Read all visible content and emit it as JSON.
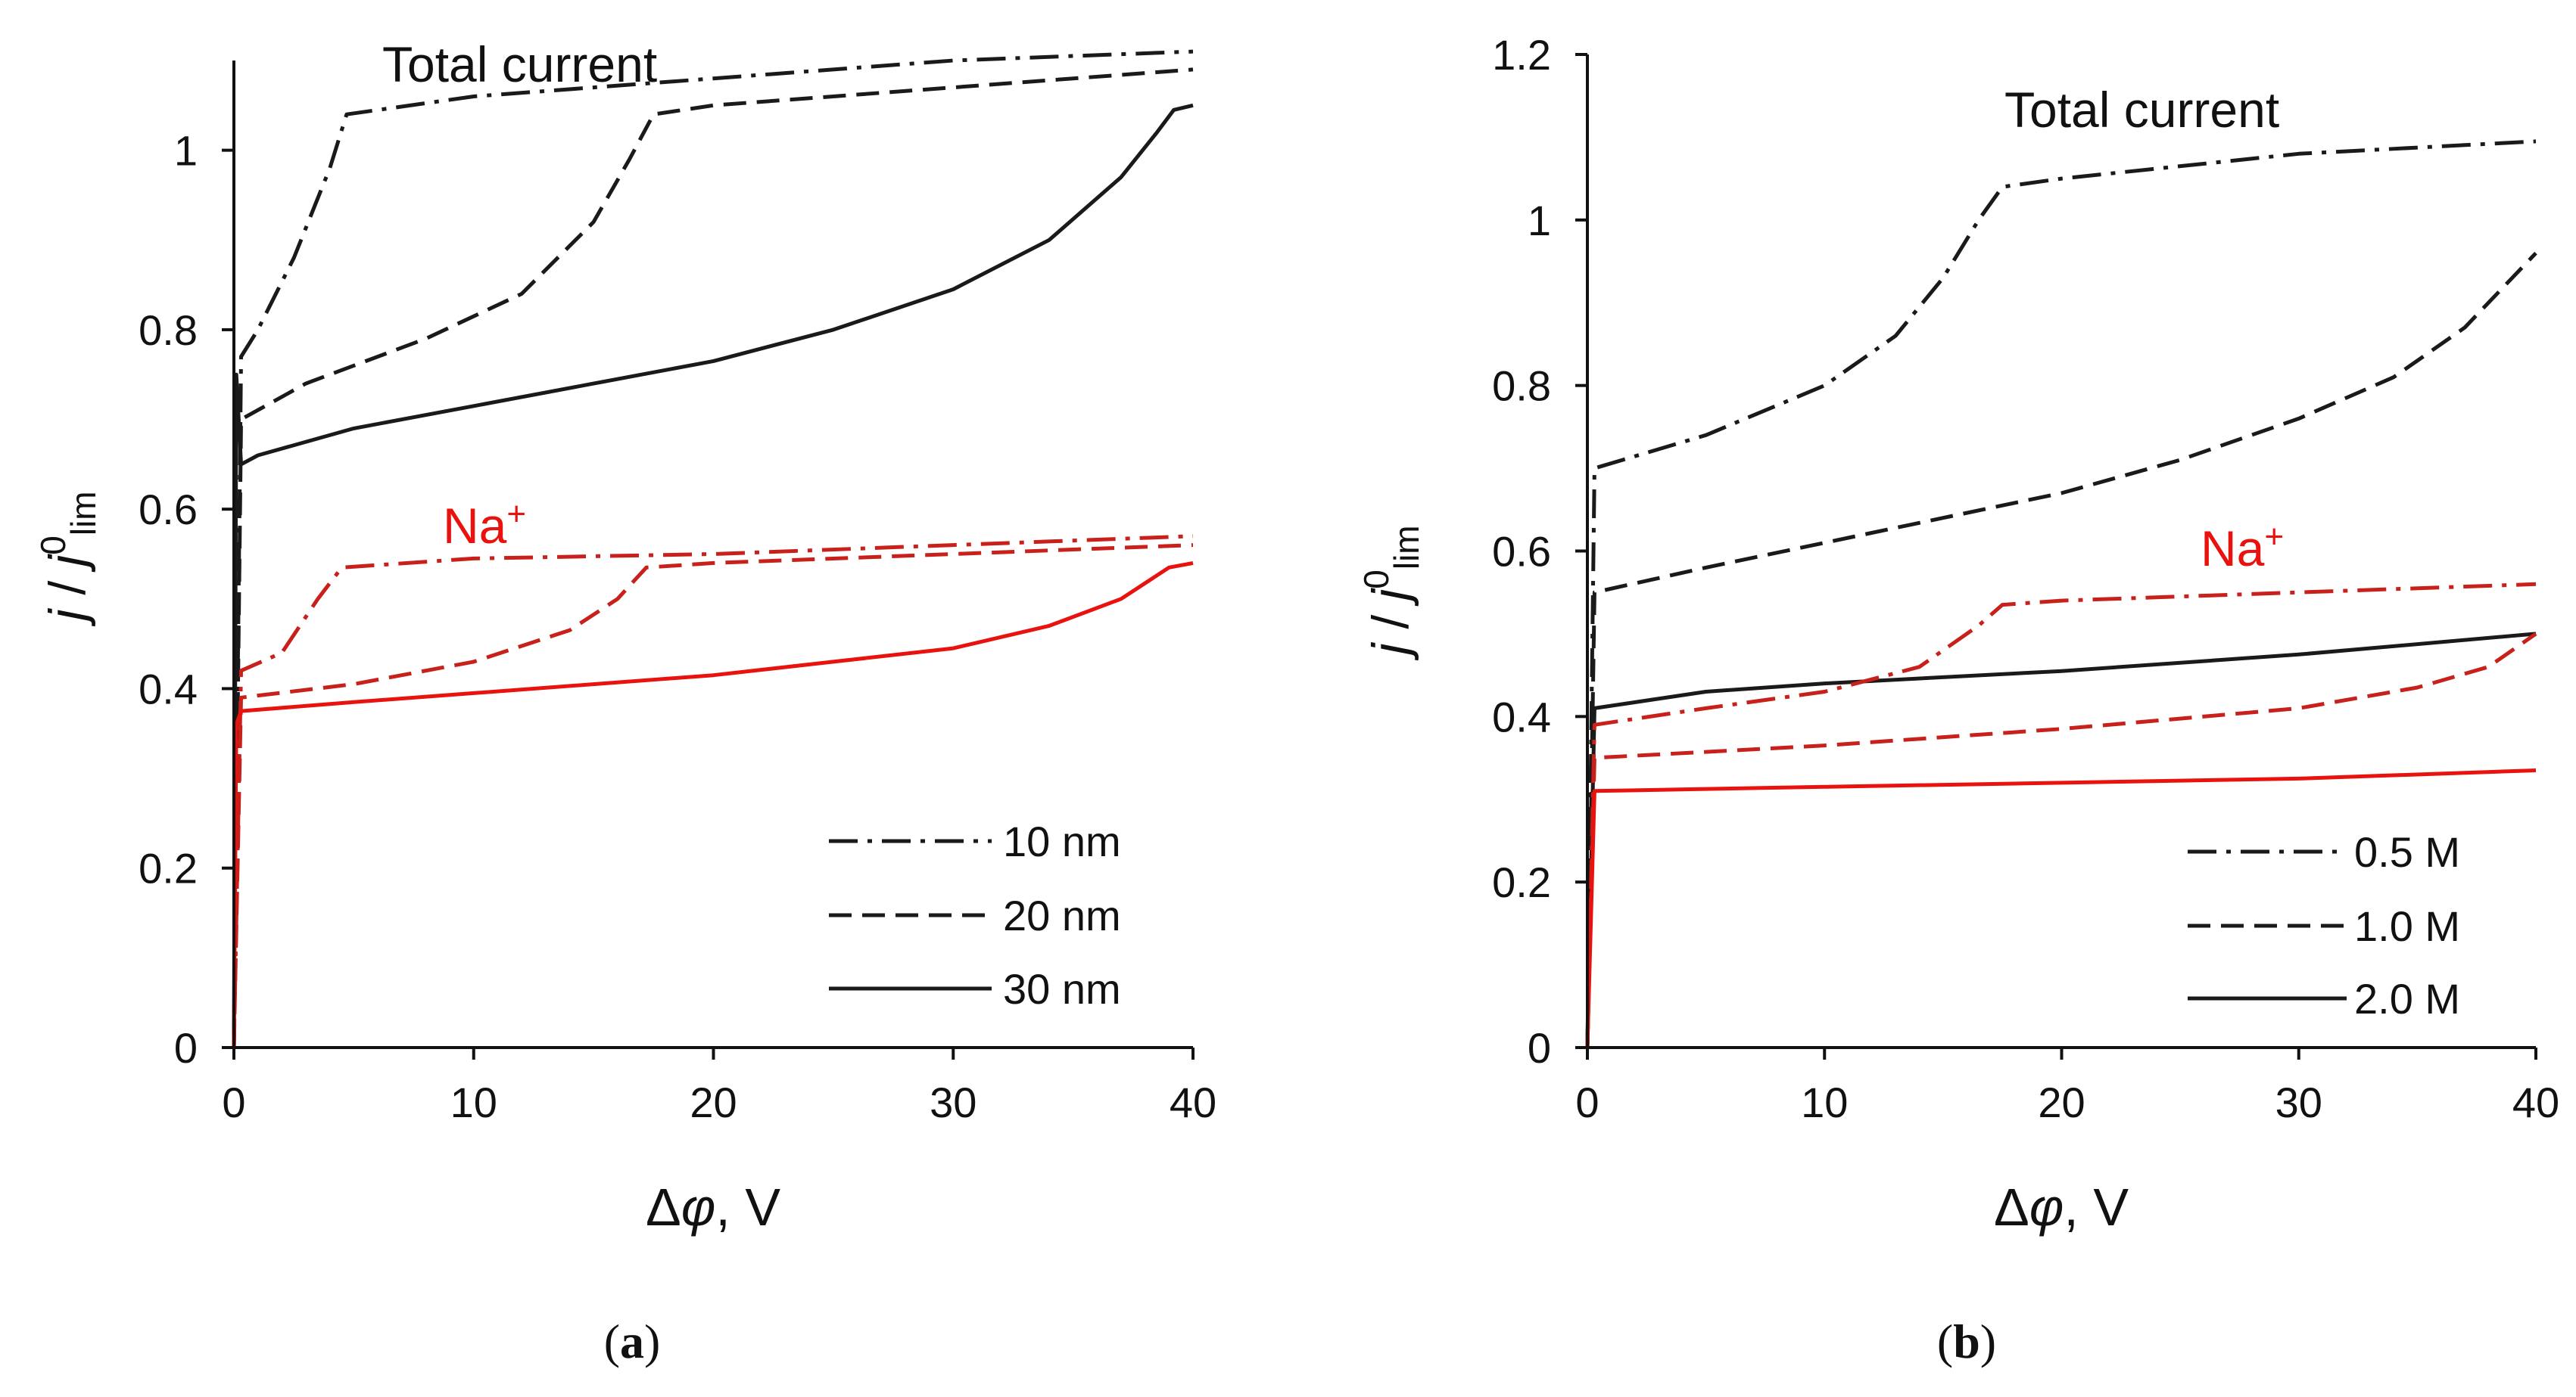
{
  "colors": {
    "total": "#1a1a1a",
    "na": "#e8120e",
    "na_dark": "#c8201a",
    "axis": "#111111"
  },
  "chart_data": [
    {
      "type": "line",
      "panel": "a",
      "panel_label": "a",
      "xlabel_prefix": "Δ",
      "xlabel_symbol": "φ",
      "xlabel_suffix": ", V",
      "ylabel_j1": "j",
      "ylabel_slash": " / ",
      "ylabel_j2": "j",
      "ylabel_sup": "0",
      "ylabel_sub": "lim",
      "xlim": [
        0,
        40
      ],
      "ylim": [
        0,
        1.1
      ],
      "xticks": [
        "0",
        "10",
        "20",
        "30",
        "40"
      ],
      "yticks": [
        "0",
        "0.2",
        "0.4",
        "0.6",
        "0.8",
        "1"
      ],
      "annotations": {
        "total": "Total current",
        "na_base": "Na",
        "na_sup": "+"
      },
      "legend": [
        "10 nm",
        "20 nm",
        "30 nm"
      ],
      "series": [
        {
          "name": "10 nm",
          "group": "Total current",
          "dash": "dashdot",
          "x": [
            0,
            0.3,
            1,
            2.5,
            4,
            4.7,
            10,
            20,
            30,
            40
          ],
          "y": [
            0,
            0.77,
            0.8,
            0.88,
            0.98,
            1.04,
            1.06,
            1.08,
            1.1,
            1.11
          ]
        },
        {
          "name": "20 nm",
          "group": "Total current",
          "dash": "dashed",
          "x": [
            0,
            0.3,
            3,
            8,
            12,
            15,
            16.5,
            17.5,
            20,
            30,
            40
          ],
          "y": [
            0,
            0.7,
            0.74,
            0.79,
            0.84,
            0.92,
            0.99,
            1.04,
            1.05,
            1.07,
            1.09
          ]
        },
        {
          "name": "30 nm",
          "group": "Total current",
          "dash": "solid",
          "x": [
            0,
            0.1,
            0.3,
            1,
            5,
            10,
            15,
            20,
            25,
            30,
            34,
            37,
            38.5,
            39.2,
            40
          ],
          "y": [
            0,
            0.75,
            0.65,
            0.66,
            0.69,
            0.715,
            0.74,
            0.765,
            0.8,
            0.845,
            0.9,
            0.97,
            1.02,
            1.045,
            1.05
          ]
        },
        {
          "name": "10 nm",
          "group": "Na+",
          "dash": "dashdot",
          "x": [
            0,
            0.3,
            2,
            3.5,
            4.5,
            10,
            20,
            30,
            40
          ],
          "y": [
            0,
            0.42,
            0.44,
            0.5,
            0.535,
            0.545,
            0.55,
            0.56,
            0.57
          ]
        },
        {
          "name": "20 nm",
          "group": "Na+",
          "dash": "dashed",
          "x": [
            0,
            0.3,
            5,
            10,
            14,
            16,
            17.2,
            20,
            30,
            40
          ],
          "y": [
            0,
            0.39,
            0.405,
            0.43,
            0.465,
            0.5,
            0.535,
            0.54,
            0.55,
            0.56
          ]
        },
        {
          "name": "30 nm",
          "group": "Na+",
          "dash": "solid",
          "x": [
            0,
            0.1,
            0.3,
            5,
            10,
            20,
            25,
            30,
            34,
            37,
            39,
            40
          ],
          "y": [
            0,
            0.36,
            0.375,
            0.385,
            0.395,
            0.415,
            0.43,
            0.445,
            0.47,
            0.5,
            0.535,
            0.54
          ]
        }
      ]
    },
    {
      "type": "line",
      "panel": "b",
      "panel_label": "b",
      "xlabel_prefix": "Δ",
      "xlabel_symbol": "φ",
      "xlabel_suffix": ", V",
      "ylabel_j1": "j",
      "ylabel_slash": " / ",
      "ylabel_j2": "j",
      "ylabel_sup": "0",
      "ylabel_sub": "lim",
      "xlim": [
        0,
        40
      ],
      "ylim": [
        0,
        1.2
      ],
      "xticks": [
        "0",
        "10",
        "20",
        "30",
        "40"
      ],
      "yticks": [
        "0",
        "0.2",
        "0.4",
        "0.6",
        "0.8",
        "1",
        "1.2"
      ],
      "annotations": {
        "total": "Total current",
        "na_base": "Na",
        "na_sup": "+"
      },
      "legend": [
        "0.5 M",
        "1.0 M",
        "2.0 M"
      ],
      "series": [
        {
          "name": "0.5 M",
          "group": "Total current",
          "dash": "dashdot",
          "x": [
            0,
            0.3,
            5,
            10,
            13,
            15,
            16.5,
            17.5,
            20,
            30,
            40
          ],
          "y": [
            0,
            0.7,
            0.74,
            0.8,
            0.86,
            0.93,
            1.0,
            1.04,
            1.05,
            1.08,
            1.095
          ]
        },
        {
          "name": "1.0 M",
          "group": "Total current",
          "dash": "dashed",
          "x": [
            0,
            0.3,
            5,
            10,
            15,
            20,
            25,
            30,
            34,
            37,
            40
          ],
          "y": [
            0,
            0.55,
            0.58,
            0.61,
            0.64,
            0.67,
            0.71,
            0.76,
            0.81,
            0.87,
            0.96
          ]
        },
        {
          "name": "2.0 M",
          "group": "Total current",
          "dash": "solid",
          "x": [
            0,
            0.3,
            5,
            10,
            20,
            30,
            40
          ],
          "y": [
            0,
            0.41,
            0.43,
            0.44,
            0.455,
            0.475,
            0.5
          ]
        },
        {
          "name": "0.5 M",
          "group": "Na+",
          "dash": "dashdot",
          "x": [
            0,
            0.3,
            5,
            10,
            14,
            16.5,
            17.5,
            20,
            30,
            40
          ],
          "y": [
            0,
            0.39,
            0.41,
            0.43,
            0.46,
            0.51,
            0.535,
            0.54,
            0.55,
            0.56
          ]
        },
        {
          "name": "1.0 M",
          "group": "Na+",
          "dash": "dashed",
          "x": [
            0,
            0.3,
            10,
            20,
            30,
            35,
            38,
            40
          ],
          "y": [
            0,
            0.35,
            0.365,
            0.385,
            0.41,
            0.435,
            0.46,
            0.5
          ]
        },
        {
          "name": "2.0 M",
          "group": "Na+",
          "dash": "solid",
          "x": [
            0,
            0.3,
            10,
            20,
            30,
            40
          ],
          "y": [
            0,
            0.31,
            0.315,
            0.32,
            0.325,
            0.335
          ]
        }
      ]
    }
  ]
}
